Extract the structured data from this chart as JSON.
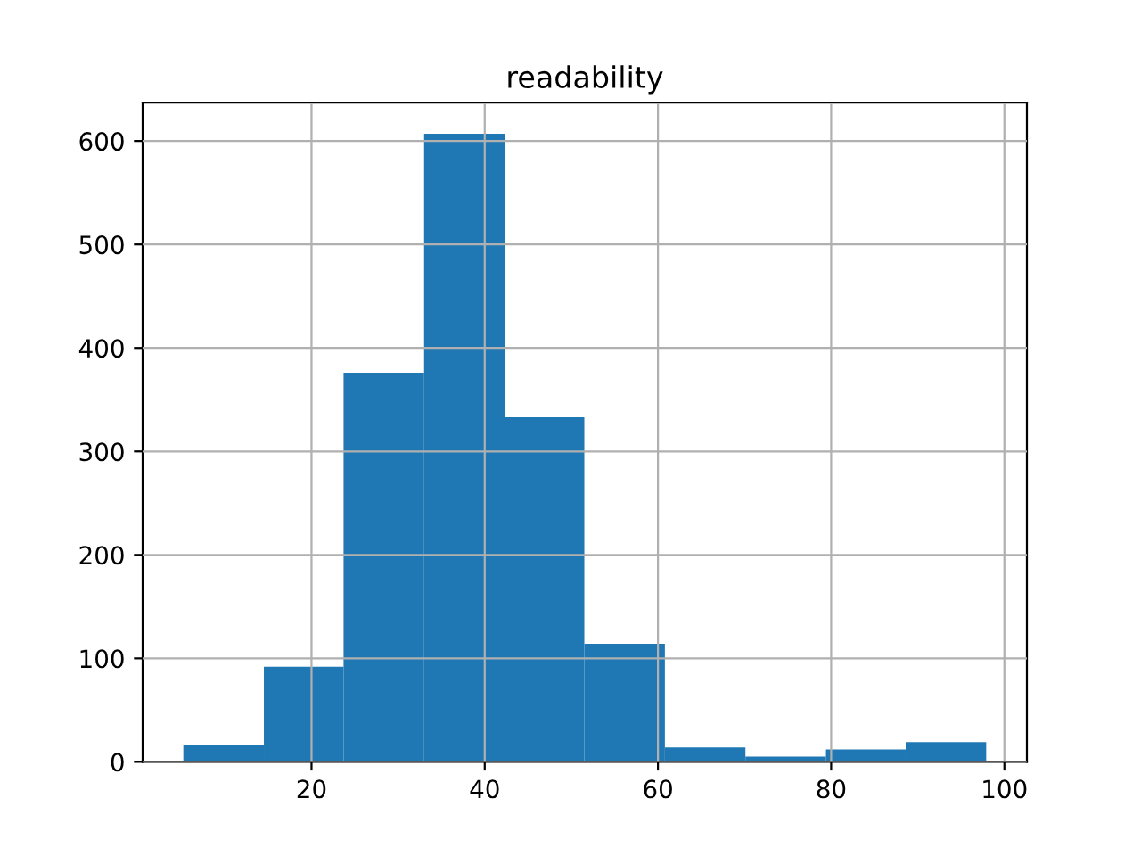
{
  "chart_data": {
    "type": "histogram",
    "title": "readability",
    "bins": [
      5.2,
      14.5,
      23.7,
      33.0,
      42.3,
      51.5,
      60.8,
      70.1,
      79.4,
      88.6,
      97.9
    ],
    "values": [
      16,
      92,
      376,
      607,
      333,
      114,
      14,
      5,
      12,
      19
    ],
    "color": "#1f77b4",
    "xlim": [
      0.5,
      102.6
    ],
    "xticks": [
      20,
      40,
      60,
      80,
      100
    ],
    "ylim": [
      0,
      637
    ],
    "yticks": [
      0,
      100,
      200,
      300,
      400,
      500,
      600
    ],
    "grid": true
  }
}
